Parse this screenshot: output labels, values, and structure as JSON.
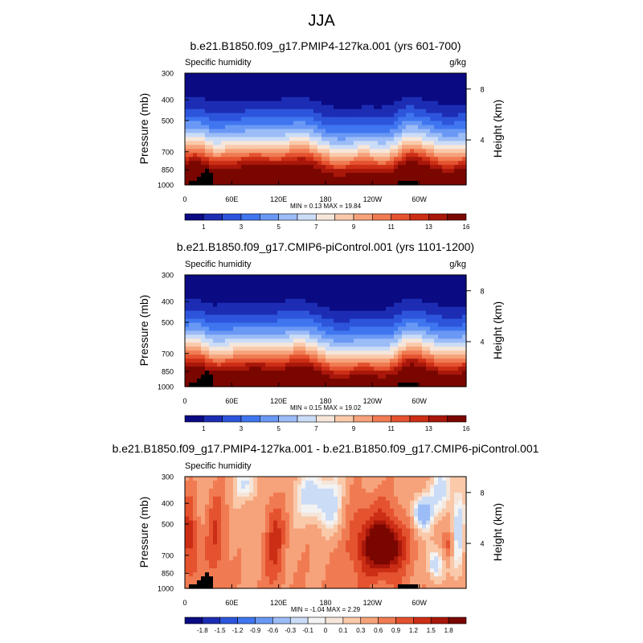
{
  "figure_title": "JJA",
  "chart_data": [
    {
      "type": "heatmap",
      "title": "b.e21.B1850.f09_g17.PMIP4-127ka.001 (yrs 601-700)",
      "left_label": "Specific humidity",
      "right_label": "g/kg",
      "ylabel": "Pressure (mb)",
      "y2label": "Height (km)",
      "y_ticks": [
        "300",
        "400",
        "500",
        "700",
        "850",
        "1000"
      ],
      "y2_ticks": [
        "8",
        "4"
      ],
      "x_ticks": [
        "0",
        "60E",
        "120E",
        "180",
        "120W",
        "60W"
      ],
      "stats": "MIN =   0.13  MAX =  19.84",
      "colorbar_labels": [
        "1",
        "3",
        "5",
        "7",
        "9",
        "11",
        "13",
        "16"
      ],
      "value_range": [
        0.13,
        19.84
      ]
    },
    {
      "type": "heatmap",
      "title": "b.e21.B1850.f09_g17.CMIP6-piControl.001 (yrs 1101-1200)",
      "left_label": "Specific humidity",
      "right_label": "g/kg",
      "ylabel": "Pressure (mb)",
      "y2label": "Height (km)",
      "y_ticks": [
        "300",
        "400",
        "500",
        "700",
        "850",
        "1000"
      ],
      "y2_ticks": [
        "8",
        "4"
      ],
      "x_ticks": [
        "0",
        "60E",
        "120E",
        "180",
        "120W",
        "60W"
      ],
      "stats": "MIN =   0.15  MAX =  19.02",
      "colorbar_labels": [
        "1",
        "3",
        "5",
        "7",
        "9",
        "11",
        "13",
        "16"
      ],
      "value_range": [
        0.15,
        19.02
      ]
    },
    {
      "type": "heatmap",
      "title": "b.e21.B1850.f09_g17.PMIP4-127ka.001 - b.e21.B1850.f09_g17.CMIP6-piControl.001",
      "left_label": "Specific humidity",
      "right_label": "",
      "ylabel": "Pressure (mb)",
      "y2label": "Height (km)",
      "y_ticks": [
        "300",
        "400",
        "500",
        "700",
        "850",
        "1000"
      ],
      "y2_ticks": [
        "8",
        "4"
      ],
      "x_ticks": [
        "0",
        "60E",
        "120E",
        "180",
        "120W",
        "60W"
      ],
      "stats": "MIN =  -1.04  MAX =   2.29",
      "colorbar_labels": [
        "-1.8",
        "-1.5",
        "-1.2",
        "-0.9",
        "-0.6",
        "-0.3",
        "-0.1",
        "0",
        "0.1",
        "0.3",
        "0.6",
        "0.9",
        "1.2",
        "1.5",
        "1.8"
      ],
      "value_range": [
        -1.04,
        2.29
      ]
    }
  ],
  "colors": {
    "abs_scale": [
      "#0a0a82",
      "#1c2db4",
      "#2d55dc",
      "#3f76f0",
      "#6a98f5",
      "#9bbcf6",
      "#cbdcf7",
      "#f6e6da",
      "#f9c9aa",
      "#f6a27a",
      "#f07b52",
      "#e4522f",
      "#cc2e15",
      "#a8170a",
      "#7a0600"
    ],
    "diff_scale": [
      "#0a0a82",
      "#1c2db4",
      "#2d55dc",
      "#3f76f0",
      "#6a98f5",
      "#9bbcf6",
      "#cbdcf7",
      "#f3f3f3",
      "#f6e6da",
      "#f9c9aa",
      "#f6a27a",
      "#f07b52",
      "#e4522f",
      "#cc2e15",
      "#a8170a",
      "#7a0600"
    ]
  }
}
